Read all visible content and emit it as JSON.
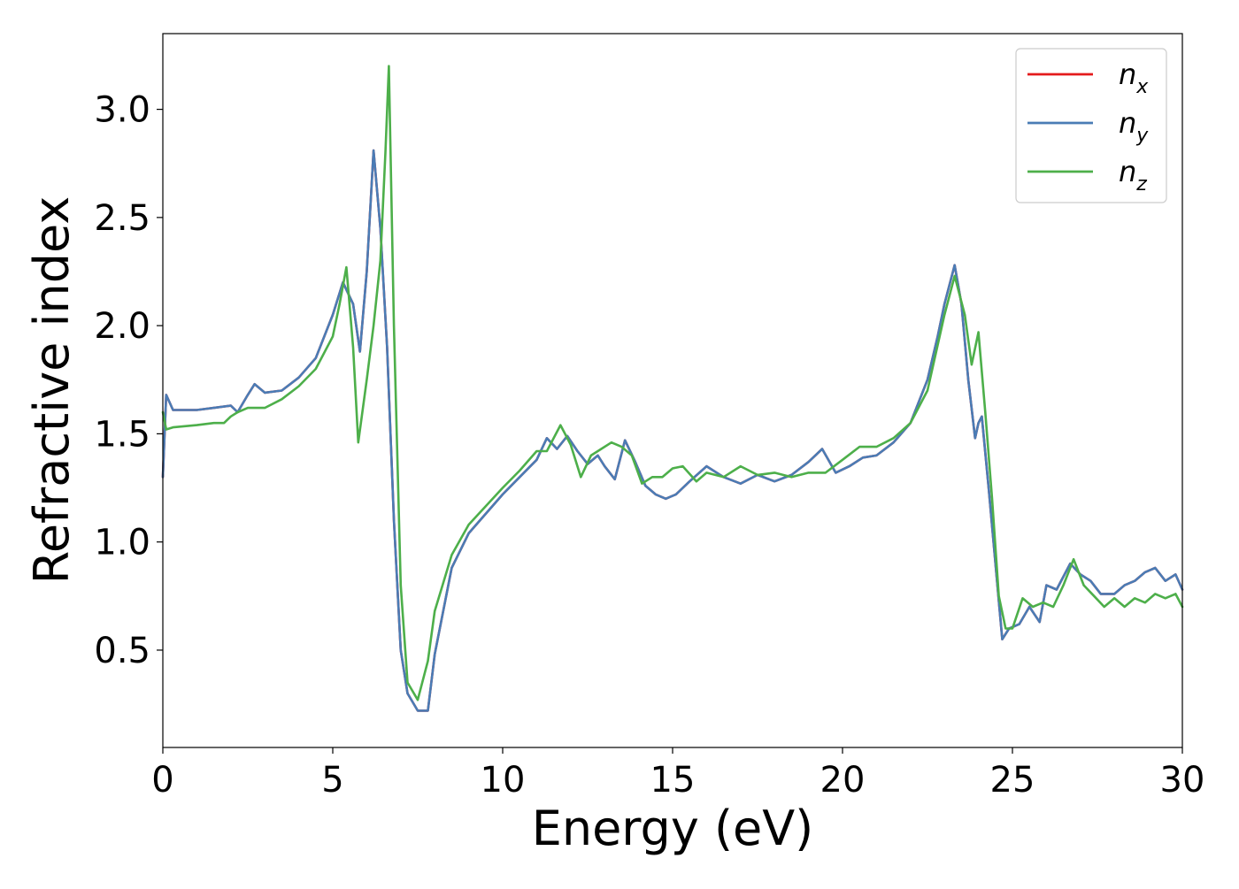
{
  "chart_data": {
    "type": "line",
    "title": "",
    "xlabel": "Energy (eV)",
    "ylabel": "Refractive index",
    "xlim": [
      0,
      30
    ],
    "ylim": [
      0.05,
      3.35
    ],
    "xticks": [
      0,
      5,
      10,
      15,
      20,
      25,
      30
    ],
    "xtick_labels": [
      "0",
      "5",
      "10",
      "15",
      "20",
      "25",
      "30"
    ],
    "yticks": [
      0.5,
      1.0,
      1.5,
      2.0,
      2.5,
      3.0
    ],
    "ytick_labels": [
      "0.5",
      "1.0",
      "1.5",
      "2.0",
      "2.5",
      "3.0"
    ],
    "grid": false,
    "legend_position": "top-right",
    "series": [
      {
        "name": "n_x",
        "label_base": "n",
        "label_sub": "x",
        "color": "#e41a1c",
        "x": [
          0,
          0.1,
          0.3,
          1,
          1.5,
          2,
          2.2,
          2.5,
          2.7,
          3,
          3.5,
          4,
          4.5,
          5,
          5.3,
          5.6,
          5.8,
          6,
          6.2,
          6.4,
          6.6,
          6.8,
          7,
          7.2,
          7.5,
          7.8,
          8,
          8.5,
          9,
          10,
          10.5,
          11,
          11.3,
          11.6,
          11.9,
          12.2,
          12.5,
          12.8,
          13,
          13.3,
          13.6,
          13.9,
          14.2,
          14.5,
          14.8,
          15.1,
          15.5,
          16,
          16.5,
          17,
          17.5,
          18,
          18.5,
          19,
          19.4,
          19.8,
          20.2,
          20.6,
          21,
          21.5,
          22,
          22.5,
          22.8,
          23,
          23.3,
          23.5,
          23.7,
          23.9,
          24,
          24.1,
          24.3,
          24.5,
          24.7,
          24.9,
          25.2,
          25.5,
          25.8,
          26,
          26.3,
          26.7,
          27,
          27.3,
          27.6,
          28,
          28.3,
          28.6,
          28.9,
          29.2,
          29.5,
          29.8,
          30
        ],
        "values": [
          1.3,
          1.68,
          1.61,
          1.61,
          1.62,
          1.63,
          1.6,
          1.68,
          1.73,
          1.69,
          1.7,
          1.76,
          1.85,
          2.05,
          2.2,
          2.1,
          1.88,
          2.25,
          2.81,
          2.45,
          1.9,
          1.1,
          0.5,
          0.3,
          0.22,
          0.22,
          0.48,
          0.88,
          1.04,
          1.22,
          1.3,
          1.38,
          1.48,
          1.43,
          1.49,
          1.42,
          1.36,
          1.4,
          1.35,
          1.29,
          1.47,
          1.37,
          1.26,
          1.22,
          1.2,
          1.22,
          1.28,
          1.35,
          1.3,
          1.27,
          1.31,
          1.28,
          1.31,
          1.37,
          1.43,
          1.32,
          1.35,
          1.39,
          1.4,
          1.46,
          1.55,
          1.75,
          1.95,
          2.1,
          2.28,
          2.1,
          1.75,
          1.48,
          1.55,
          1.58,
          1.25,
          0.9,
          0.55,
          0.6,
          0.62,
          0.7,
          0.63,
          0.8,
          0.78,
          0.9,
          0.85,
          0.82,
          0.76,
          0.76,
          0.8,
          0.82,
          0.86,
          0.88,
          0.82,
          0.85,
          0.78
        ]
      },
      {
        "name": "n_y",
        "label_base": "n",
        "label_sub": "y",
        "color": "#4a7cb5",
        "x": [
          0,
          0.1,
          0.3,
          1,
          1.5,
          2,
          2.2,
          2.5,
          2.7,
          3,
          3.5,
          4,
          4.5,
          5,
          5.3,
          5.6,
          5.8,
          6,
          6.2,
          6.4,
          6.6,
          6.8,
          7,
          7.2,
          7.5,
          7.8,
          8,
          8.5,
          9,
          10,
          10.5,
          11,
          11.3,
          11.6,
          11.9,
          12.2,
          12.5,
          12.8,
          13,
          13.3,
          13.6,
          13.9,
          14.2,
          14.5,
          14.8,
          15.1,
          15.5,
          16,
          16.5,
          17,
          17.5,
          18,
          18.5,
          19,
          19.4,
          19.8,
          20.2,
          20.6,
          21,
          21.5,
          22,
          22.5,
          22.8,
          23,
          23.3,
          23.5,
          23.7,
          23.9,
          24,
          24.1,
          24.3,
          24.5,
          24.7,
          24.9,
          25.2,
          25.5,
          25.8,
          26,
          26.3,
          26.7,
          27,
          27.3,
          27.6,
          28,
          28.3,
          28.6,
          28.9,
          29.2,
          29.5,
          29.8,
          30
        ],
        "values": [
          1.3,
          1.68,
          1.61,
          1.61,
          1.62,
          1.63,
          1.6,
          1.68,
          1.73,
          1.69,
          1.7,
          1.76,
          1.85,
          2.05,
          2.2,
          2.1,
          1.88,
          2.25,
          2.81,
          2.45,
          1.9,
          1.1,
          0.5,
          0.3,
          0.22,
          0.22,
          0.48,
          0.88,
          1.04,
          1.22,
          1.3,
          1.38,
          1.48,
          1.43,
          1.49,
          1.42,
          1.36,
          1.4,
          1.35,
          1.29,
          1.47,
          1.37,
          1.26,
          1.22,
          1.2,
          1.22,
          1.28,
          1.35,
          1.3,
          1.27,
          1.31,
          1.28,
          1.31,
          1.37,
          1.43,
          1.32,
          1.35,
          1.39,
          1.4,
          1.46,
          1.55,
          1.75,
          1.95,
          2.1,
          2.28,
          2.1,
          1.75,
          1.48,
          1.55,
          1.58,
          1.25,
          0.9,
          0.55,
          0.6,
          0.62,
          0.7,
          0.63,
          0.8,
          0.78,
          0.9,
          0.85,
          0.82,
          0.76,
          0.76,
          0.8,
          0.82,
          0.86,
          0.88,
          0.82,
          0.85,
          0.78
        ]
      },
      {
        "name": "n_z",
        "label_base": "n",
        "label_sub": "z",
        "color": "#4daf4a",
        "x": [
          0,
          0.1,
          0.3,
          1,
          1.5,
          1.8,
          2,
          2.2,
          2.5,
          2.8,
          3,
          3.5,
          4,
          4.5,
          5,
          5.2,
          5.4,
          5.6,
          5.75,
          6,
          6.2,
          6.4,
          6.55,
          6.65,
          6.8,
          7,
          7.2,
          7.5,
          7.8,
          8,
          8.5,
          9,
          10,
          10.5,
          11,
          11.3,
          11.7,
          12,
          12.3,
          12.6,
          12.9,
          13.2,
          13.5,
          13.8,
          14.1,
          14.4,
          14.7,
          15,
          15.3,
          15.7,
          16,
          16.5,
          17,
          17.5,
          18,
          18.5,
          19,
          19.5,
          20,
          20.5,
          21,
          21.5,
          22,
          22.5,
          23,
          23.3,
          23.6,
          23.8,
          24,
          24.2,
          24.4,
          24.6,
          24.8,
          25,
          25.3,
          25.6,
          25.9,
          26.2,
          26.5,
          26.8,
          27.1,
          27.4,
          27.7,
          28,
          28.3,
          28.6,
          28.9,
          29.2,
          29.5,
          29.8,
          30
        ],
        "values": [
          1.6,
          1.52,
          1.53,
          1.54,
          1.55,
          1.55,
          1.58,
          1.6,
          1.62,
          1.62,
          1.62,
          1.66,
          1.72,
          1.8,
          1.95,
          2.1,
          2.27,
          1.9,
          1.46,
          1.75,
          2.0,
          2.3,
          2.8,
          3.2,
          2.0,
          0.8,
          0.35,
          0.27,
          0.45,
          0.68,
          0.94,
          1.08,
          1.25,
          1.33,
          1.42,
          1.42,
          1.54,
          1.45,
          1.3,
          1.4,
          1.43,
          1.46,
          1.44,
          1.4,
          1.27,
          1.3,
          1.3,
          1.34,
          1.35,
          1.28,
          1.32,
          1.3,
          1.35,
          1.31,
          1.32,
          1.3,
          1.32,
          1.32,
          1.38,
          1.44,
          1.44,
          1.48,
          1.55,
          1.7,
          2.05,
          2.23,
          2.05,
          1.82,
          1.97,
          1.6,
          1.2,
          0.75,
          0.6,
          0.6,
          0.74,
          0.7,
          0.72,
          0.7,
          0.8,
          0.92,
          0.8,
          0.75,
          0.7,
          0.74,
          0.7,
          0.74,
          0.72,
          0.76,
          0.74,
          0.76,
          0.7
        ]
      }
    ]
  }
}
